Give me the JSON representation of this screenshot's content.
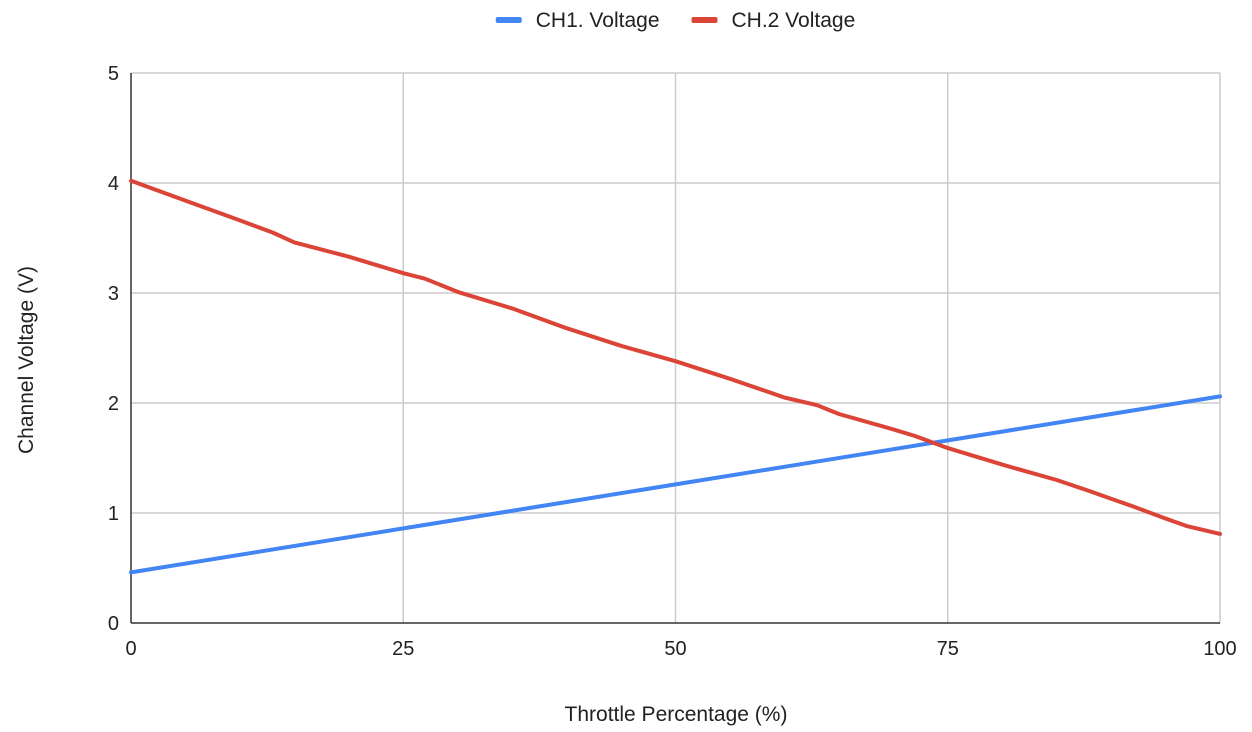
{
  "chart_data": {
    "type": "line",
    "title": "",
    "xlabel": "Throttle Percentage (%)",
    "ylabel": "Channel Voltage (V)",
    "xlim": [
      0,
      100
    ],
    "ylim": [
      0,
      5
    ],
    "x_ticks": [
      0,
      25,
      50,
      75,
      100
    ],
    "y_ticks": [
      0,
      1,
      2,
      3,
      4,
      5
    ],
    "x_tick_labels": [
      "0",
      "25",
      "50",
      "75",
      "100"
    ],
    "y_tick_labels": [
      "0",
      "1",
      "2",
      "3",
      "4",
      "5"
    ],
    "grid": true,
    "legend_position": "top-center",
    "series": [
      {
        "name": "CH1. Voltage",
        "color": "#4285F4",
        "x": [
          0,
          10,
          20,
          25,
          30,
          40,
          50,
          60,
          70,
          75,
          80,
          90,
          100
        ],
        "y": [
          0.46,
          0.62,
          0.78,
          0.86,
          0.94,
          1.1,
          1.26,
          1.42,
          1.58,
          1.66,
          1.74,
          1.9,
          2.06
        ]
      },
      {
        "name": "CH.2 Voltage",
        "color": "#DB4437",
        "x": [
          0,
          5,
          10,
          13,
          15,
          20,
          25,
          27,
          30,
          35,
          40,
          45,
          50,
          55,
          60,
          63,
          65,
          70,
          72,
          75,
          80,
          85,
          88,
          90,
          92,
          95,
          97,
          100
        ],
        "y": [
          4.02,
          3.84,
          3.66,
          3.55,
          3.46,
          3.33,
          3.18,
          3.13,
          3.01,
          2.86,
          2.68,
          2.52,
          2.38,
          2.22,
          2.05,
          1.98,
          1.9,
          1.76,
          1.7,
          1.59,
          1.44,
          1.3,
          1.2,
          1.13,
          1.06,
          0.95,
          0.88,
          0.81
        ]
      }
    ]
  }
}
